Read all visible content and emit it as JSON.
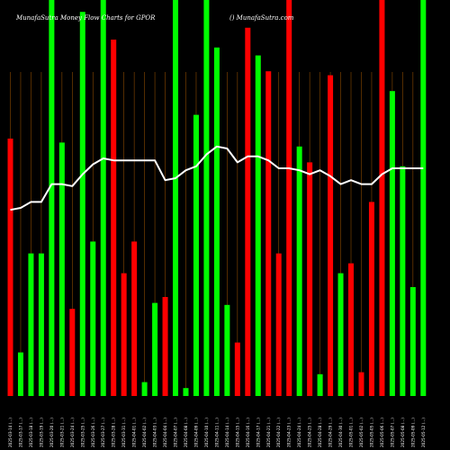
{
  "header": {
    "left_title": "MunafaSutra  Money Flow  Charts for GPOR",
    "right_title": "() MunafaSutra.com"
  },
  "colors": {
    "background": "#000000",
    "up": "#00ff00",
    "down": "#ff0000",
    "line": "#ffffff",
    "grid": "#8b4a00"
  },
  "chart_data": {
    "type": "bar",
    "title": "MunafaSutra  Money Flow  Charts for GPOR",
    "watermark": "() MunafaSutra.com",
    "grid": true,
    "ylim": [
      0,
      100
    ],
    "categories": [
      "2025-03-14 (...)",
      "2025-03-17 (...)",
      "2025-03-18 (...)",
      "2025-03-19 (...)",
      "2025-03-20 (...)",
      "2025-03-21 (...)",
      "2025-03-24 (...)",
      "2025-03-25 (...)",
      "2025-03-26 (...)",
      "2025-03-27 (...)",
      "2025-03-28 (...)",
      "2025-03-31 (...)",
      "2025-04-01 (...)",
      "2025-04-02 (...)",
      "2025-04-03 (...)",
      "2025-04-04 (...)",
      "2025-04-07 (...)",
      "2025-04-08 (...)",
      "2025-04-09 (...)",
      "2025-04-10 (...)",
      "2025-04-11 (...)",
      "2025-04-14 (...)",
      "2025-04-15 (...)",
      "2025-04-16 (...)",
      "2025-04-17 (...)",
      "2025-04-21 (...)",
      "2025-04-22 (...)",
      "2025-04-23 (...)",
      "2025-04-24 (...)",
      "2025-04-25 (...)",
      "2025-04-28 (...)",
      "2025-04-29 (...)",
      "2025-04-30 (...)",
      "2025-05-01 (...)",
      "2025-05-02 (...)",
      "2025-05-05 (...)",
      "2025-05-06 (...)",
      "2025-05-07 (...)",
      "2025-05-08 (...)",
      "2025-05-09 (...)",
      "2025-05-12 (...)"
    ],
    "bar_colors": [
      "red",
      "green",
      "green",
      "green",
      "green",
      "green",
      "red",
      "green",
      "green",
      "green",
      "red",
      "red",
      "red",
      "green",
      "green",
      "red",
      "green",
      "green",
      "green",
      "green",
      "green",
      "green",
      "red",
      "red",
      "green",
      "red",
      "red",
      "red",
      "green",
      "red",
      "green",
      "red",
      "green",
      "red",
      "red",
      "red",
      "red",
      "green",
      "green",
      "green",
      "green"
    ],
    "bar_values": [
      65,
      11,
      36,
      36,
      100,
      64,
      22,
      97,
      39,
      100,
      90,
      31,
      39,
      3.5,
      23.5,
      25,
      100,
      2,
      71,
      100,
      88,
      23,
      13.5,
      93,
      86,
      82,
      36,
      100,
      63,
      59,
      5.5,
      81,
      31,
      33.5,
      6,
      49,
      100,
      77,
      58,
      27.5,
      100
    ],
    "line_values": [
      47,
      47.5,
      49,
      49,
      53.5,
      53.5,
      53,
      56,
      58.5,
      60,
      59.5,
      59.5,
      59.5,
      59.5,
      59.5,
      54.5,
      55,
      57,
      58,
      61,
      63,
      62.5,
      59,
      60.5,
      60.5,
      59.5,
      57.5,
      57.5,
      57,
      56,
      57,
      55.5,
      53.5,
      54.5,
      53.5,
      53.5,
      56,
      57.5,
      57.5,
      57.5,
      57.5
    ]
  }
}
